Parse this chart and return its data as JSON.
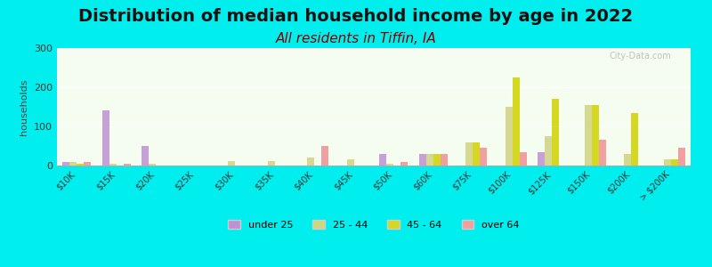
{
  "title": "Distribution of median household income by age in 2022",
  "subtitle": "All residents in Tiffin, IA",
  "xlabel": "",
  "ylabel": "households",
  "watermark": "City-Data.com",
  "background_color": "#00EEEE",
  "plot_bg_top": "#e8f5e0",
  "plot_bg_bottom": "#f0fff0",
  "ylim": [
    0,
    300
  ],
  "yticks": [
    0,
    100,
    200,
    300
  ],
  "categories": [
    "$10K",
    "$15K",
    "$20K",
    "$25K",
    "$30K",
    "$35K",
    "$40K",
    "$45K",
    "$50K",
    "$60K",
    "$75K",
    "$100K",
    "$125K",
    "$150K",
    "$200K",
    "> $200K"
  ],
  "age_groups": [
    "under 25",
    "25 - 44",
    "45 - 64",
    "over 64"
  ],
  "colors": [
    "#c8a0d8",
    "#d4d890",
    "#d4d820",
    "#f0a0a0"
  ],
  "data": {
    "under 25": [
      8,
      140,
      50,
      0,
      0,
      0,
      0,
      0,
      30,
      30,
      0,
      0,
      35,
      0,
      0,
      0
    ],
    "25 - 44": [
      8,
      5,
      5,
      0,
      12,
      12,
      20,
      15,
      5,
      30,
      60,
      150,
      75,
      155,
      30,
      15
    ],
    "45 - 64": [
      5,
      0,
      0,
      0,
      0,
      0,
      0,
      0,
      0,
      30,
      60,
      225,
      170,
      155,
      135,
      15
    ],
    "over 64": [
      8,
      5,
      0,
      0,
      0,
      0,
      50,
      0,
      8,
      30,
      45,
      35,
      0,
      65,
      0,
      45
    ]
  },
  "legend_colors": [
    "#c090d0",
    "#ccd880",
    "#d4d820",
    "#f0a0a0"
  ],
  "title_fontsize": 14,
  "subtitle_fontsize": 11,
  "subtitle_color": "#8B0000"
}
